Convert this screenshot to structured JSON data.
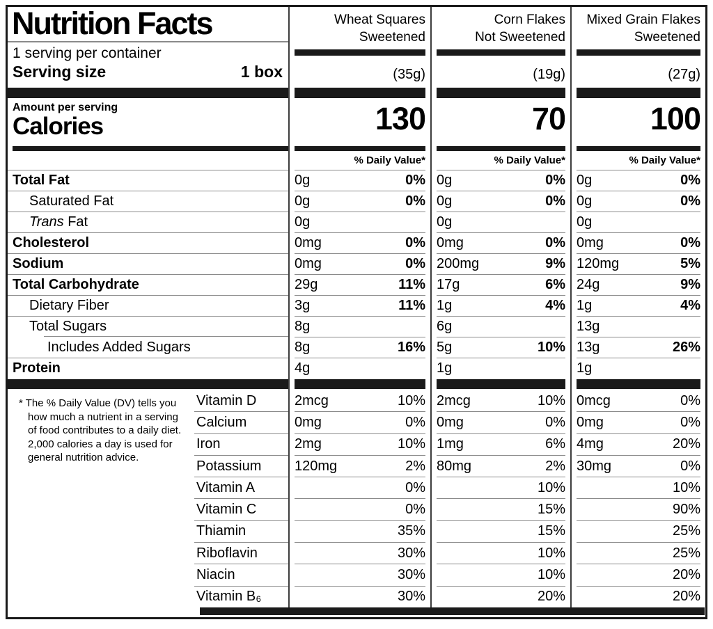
{
  "colors": {
    "text": "#000000",
    "background": "#ffffff",
    "bars": "#1a1a1a",
    "hairline": "#8a8a8a"
  },
  "label": {
    "title": "Nutrition Facts",
    "servings_per_container": "1 serving per container",
    "serving_size_label": "Serving size",
    "serving_size_value": "1 box",
    "amount_per_serving": "Amount per serving",
    "calories_label": "Calories",
    "daily_value_header": "% Daily Value*",
    "footnote": "* The % Daily Value (DV) tells you how much a nutrient in a serving of food contributes to a daily diet. 2,000 calories a day is used for general nutrition advice."
  },
  "products": [
    {
      "name_line1": "Wheat Squares",
      "name_line2": "Sweetened",
      "serving_weight": "(35g)",
      "calories": "130"
    },
    {
      "name_line1": "Corn Flakes",
      "name_line2": "Not Sweetened",
      "serving_weight": "(19g)",
      "calories": "70"
    },
    {
      "name_line1": "Mixed Grain Flakes",
      "name_line2": "Sweetened",
      "serving_weight": "(27g)",
      "calories": "100"
    }
  ],
  "nutrients": [
    {
      "label": "Total Fat",
      "cols": [
        {
          "amount": "0g",
          "dv": "0%"
        },
        {
          "amount": "0g",
          "dv": "0%"
        },
        {
          "amount": "0g",
          "dv": "0%"
        }
      ]
    },
    {
      "label": "Saturated Fat",
      "cols": [
        {
          "amount": "0g",
          "dv": "0%"
        },
        {
          "amount": "0g",
          "dv": "0%"
        },
        {
          "amount": "0g",
          "dv": "0%"
        }
      ]
    },
    {
      "label_italic": "Trans",
      "label_rest": " Fat",
      "cols": [
        {
          "amount": "0g",
          "dv": ""
        },
        {
          "amount": "0g",
          "dv": ""
        },
        {
          "amount": "0g",
          "dv": ""
        }
      ]
    },
    {
      "label": "Cholesterol",
      "cols": [
        {
          "amount": "0mg",
          "dv": "0%"
        },
        {
          "amount": "0mg",
          "dv": "0%"
        },
        {
          "amount": "0mg",
          "dv": "0%"
        }
      ]
    },
    {
      "label": "Sodium",
      "cols": [
        {
          "amount": "0mg",
          "dv": "0%"
        },
        {
          "amount": "200mg",
          "dv": "9%"
        },
        {
          "amount": "120mg",
          "dv": "5%"
        }
      ]
    },
    {
      "label": "Total Carbohydrate",
      "cols": [
        {
          "amount": "29g",
          "dv": "11%"
        },
        {
          "amount": "17g",
          "dv": "6%"
        },
        {
          "amount": "24g",
          "dv": "9%"
        }
      ]
    },
    {
      "label": "Dietary Fiber",
      "cols": [
        {
          "amount": "3g",
          "dv": "11%"
        },
        {
          "amount": "1g",
          "dv": "4%"
        },
        {
          "amount": "1g",
          "dv": "4%"
        }
      ]
    },
    {
      "label": "Total Sugars",
      "cols": [
        {
          "amount": "8g",
          "dv": ""
        },
        {
          "amount": "6g",
          "dv": ""
        },
        {
          "amount": "13g",
          "dv": ""
        }
      ]
    },
    {
      "label": "Includes Added Sugars",
      "cols": [
        {
          "amount": "8g",
          "dv": "16%"
        },
        {
          "amount": "5g",
          "dv": "10%"
        },
        {
          "amount": "13g",
          "dv": "26%"
        }
      ]
    },
    {
      "label": "Protein",
      "cols": [
        {
          "amount": "4g",
          "dv": ""
        },
        {
          "amount": "1g",
          "dv": ""
        },
        {
          "amount": "1g",
          "dv": ""
        }
      ]
    }
  ],
  "micronutrients": [
    {
      "label": "Vitamin D",
      "cols": [
        {
          "amount": "2mcg",
          "dv": "10%"
        },
        {
          "amount": "2mcg",
          "dv": "10%"
        },
        {
          "amount": "0mcg",
          "dv": "0%"
        }
      ]
    },
    {
      "label": "Calcium",
      "cols": [
        {
          "amount": "0mg",
          "dv": "0%"
        },
        {
          "amount": "0mg",
          "dv": "0%"
        },
        {
          "amount": "0mg",
          "dv": "0%"
        }
      ]
    },
    {
      "label": "Iron",
      "cols": [
        {
          "amount": "2mg",
          "dv": "10%"
        },
        {
          "amount": "1mg",
          "dv": "6%"
        },
        {
          "amount": "4mg",
          "dv": "20%"
        }
      ]
    },
    {
      "label": "Potassium",
      "cols": [
        {
          "amount": "120mg",
          "dv": "2%"
        },
        {
          "amount": "80mg",
          "dv": "2%"
        },
        {
          "amount": "30mg",
          "dv": "0%"
        }
      ]
    },
    {
      "label": "Vitamin A",
      "cols": [
        {
          "amount": "",
          "dv": "0%"
        },
        {
          "amount": "",
          "dv": "10%"
        },
        {
          "amount": "",
          "dv": "10%"
        }
      ]
    },
    {
      "label": "Vitamin C",
      "cols": [
        {
          "amount": "",
          "dv": "0%"
        },
        {
          "amount": "",
          "dv": "15%"
        },
        {
          "amount": "",
          "dv": "90%"
        }
      ]
    },
    {
      "label": "Thiamin",
      "cols": [
        {
          "amount": "",
          "dv": "35%"
        },
        {
          "amount": "",
          "dv": "15%"
        },
        {
          "amount": "",
          "dv": "25%"
        }
      ]
    },
    {
      "label": "Riboflavin",
      "cols": [
        {
          "amount": "",
          "dv": "30%"
        },
        {
          "amount": "",
          "dv": "10%"
        },
        {
          "amount": "",
          "dv": "25%"
        }
      ]
    },
    {
      "label": "Niacin",
      "cols": [
        {
          "amount": "",
          "dv": "30%"
        },
        {
          "amount": "",
          "dv": "10%"
        },
        {
          "amount": "",
          "dv": "20%"
        }
      ]
    },
    {
      "label": "Vitamin B₆",
      "cols": [
        {
          "amount": "",
          "dv": "30%"
        },
        {
          "amount": "",
          "dv": "20%"
        },
        {
          "amount": "",
          "dv": "20%"
        }
      ]
    }
  ]
}
